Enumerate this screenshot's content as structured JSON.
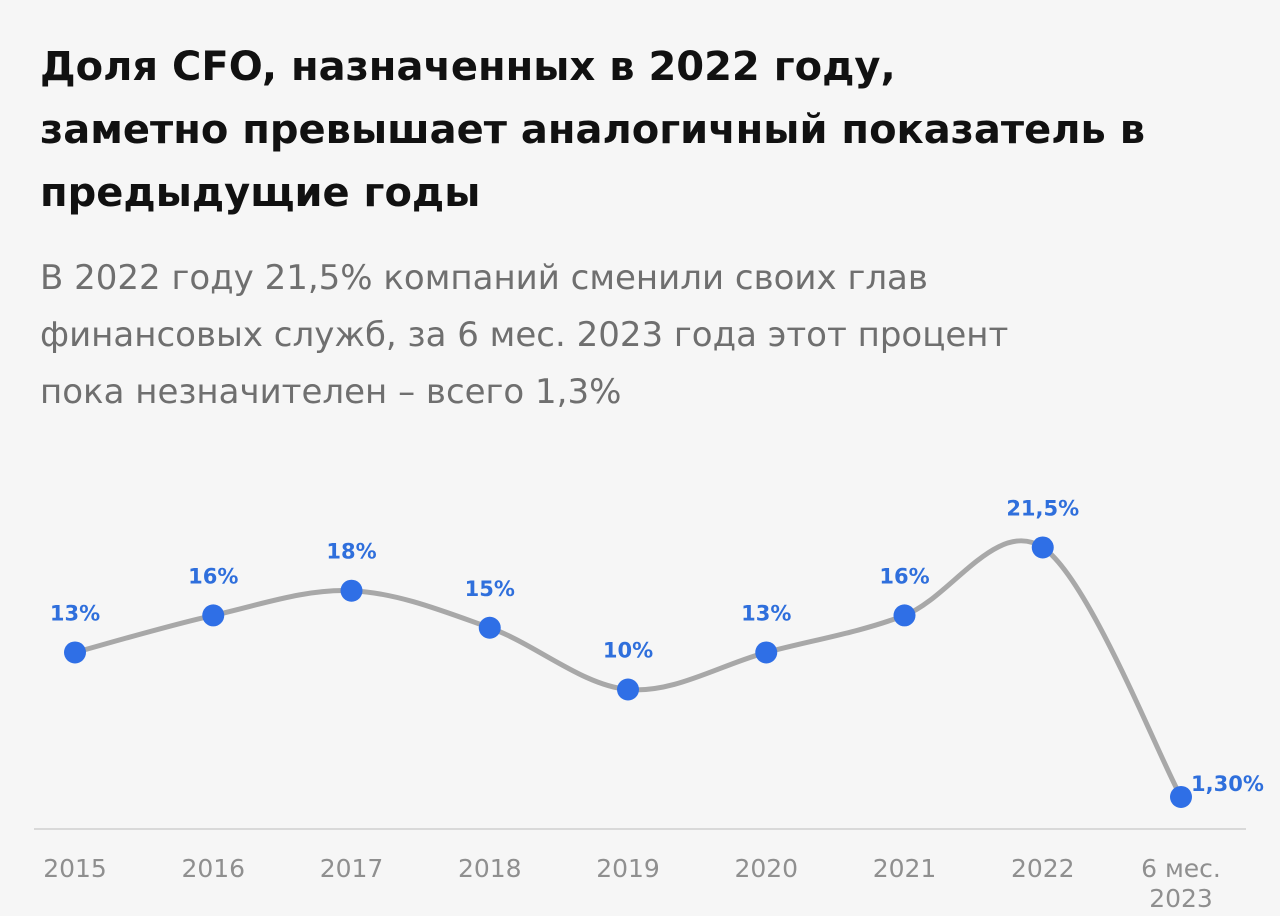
{
  "title_lines": [
    "Доля CFO, назначенных в 2022 году,",
    "заметно превышает аналогичный показатель в",
    "предыдущие годы"
  ],
  "subtitle_lines": [
    "В 2022 году 21,5% компаний сменили своих глав",
    "финансовых служб, за 6 мес. 2023 года этот процент",
    "пока незначителен – всего 1,3%"
  ],
  "colors": {
    "line": "#a8a8a8",
    "point": "#2f6fe6",
    "label": "#2f6fdc",
    "axis": "#d9d9d9",
    "tick": "#8f8f8f"
  },
  "chart_data": {
    "type": "line",
    "x": [
      "2015",
      "2016",
      "2017",
      "2018",
      "2019",
      "2020",
      "2021",
      "2022",
      "6 мес. 2023"
    ],
    "x_tick_lines": [
      [
        "2015"
      ],
      [
        "2016"
      ],
      [
        "2017"
      ],
      [
        "2018"
      ],
      [
        "2019"
      ],
      [
        "2020"
      ],
      [
        "2021"
      ],
      [
        "2022"
      ],
      [
        "6 мес.",
        "2023"
      ]
    ],
    "values": [
      13,
      16,
      18,
      15,
      10,
      13,
      16,
      21.5,
      1.3
    ],
    "value_labels": [
      "13%",
      "16%",
      "18%",
      "15%",
      "10%",
      "13%",
      "16%",
      "21,5%",
      "1,30%"
    ],
    "ylim": [
      0,
      22
    ],
    "y_axis_visible": false,
    "grid": false,
    "smooth": true,
    "title": "",
    "xlabel": "",
    "ylabel": ""
  }
}
